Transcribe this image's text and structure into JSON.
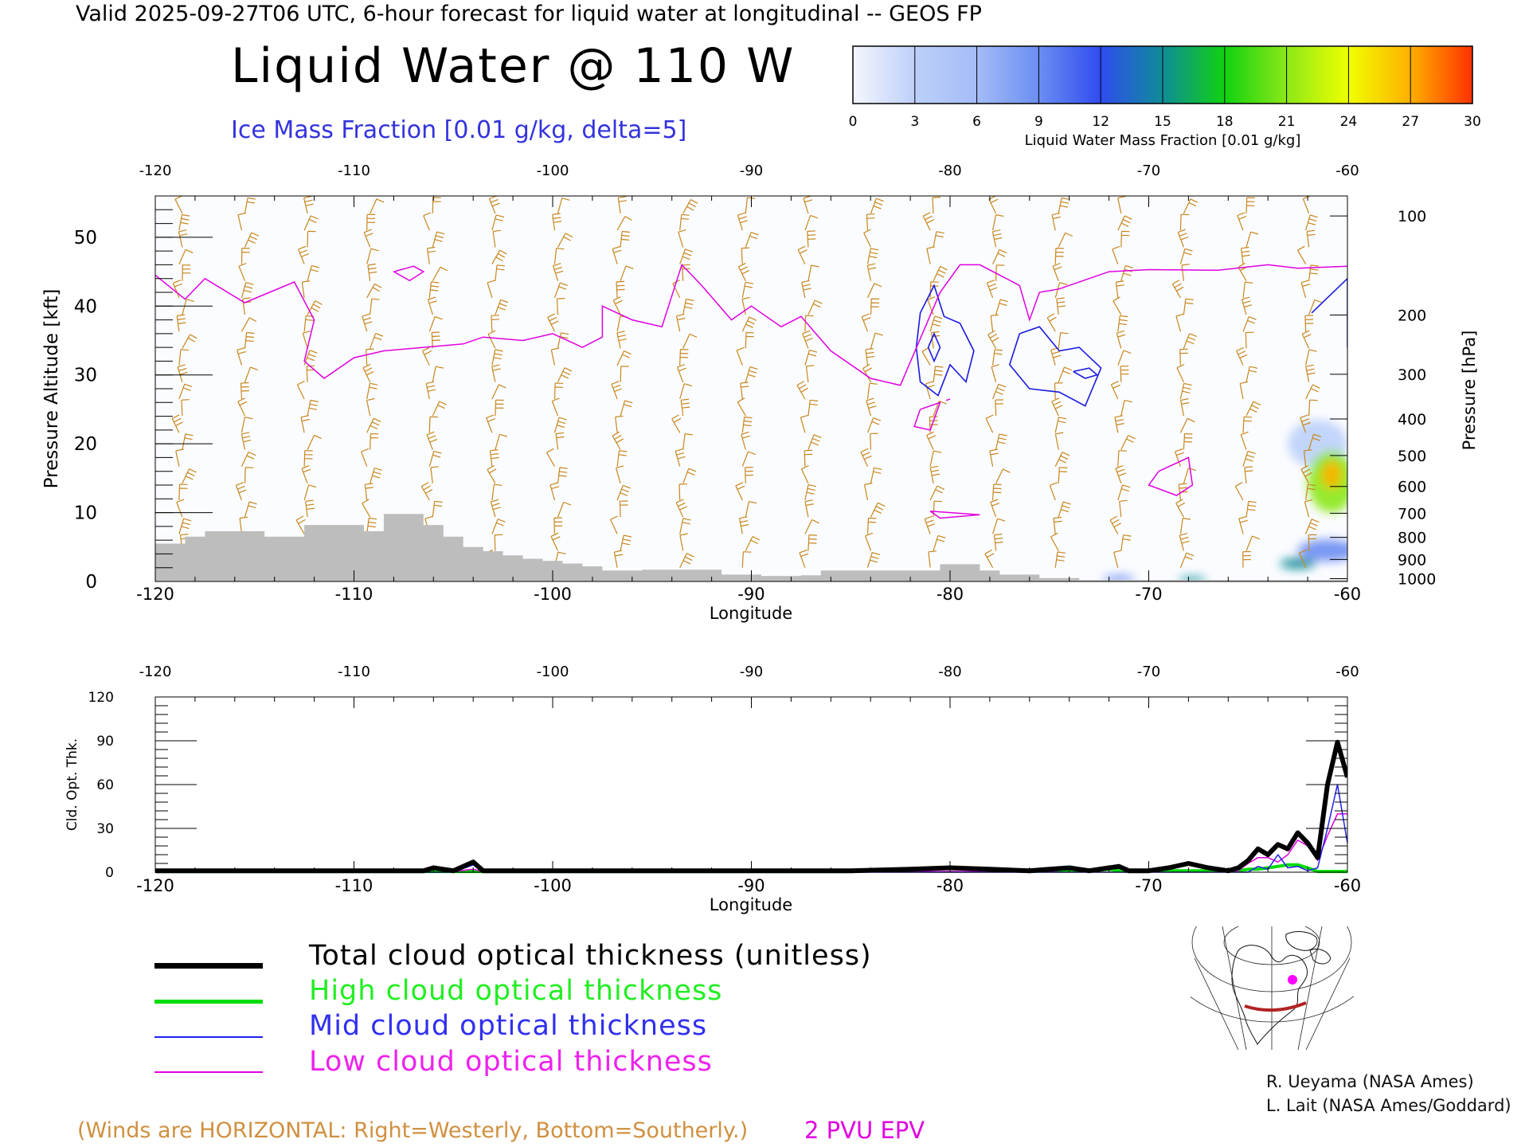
{
  "header": {
    "line": "Valid 2025-09-27T06 UTC, 6-hour forecast for liquid water at longitudinal -- GEOS FP",
    "title": "Liquid Water @ 110 W",
    "subtitle": "Ice Mass Fraction [0.01 g/kg, delta=5]"
  },
  "colorbar": {
    "label": "Liquid Water Mass Fraction [0.01 g/kg]",
    "ticks": [
      "0",
      "3",
      "6",
      "9",
      "12",
      "15",
      "18",
      "21",
      "24",
      "27",
      "30"
    ],
    "colors": [
      "#f4f6fd",
      "#bdd0f9",
      "#a4bcf7",
      "#6b8ef2",
      "#2f4cef",
      "#0f8c98",
      "#10d210",
      "#8ce818",
      "#f0ff00",
      "#ffb000",
      "#ff3000"
    ]
  },
  "colors": {
    "ice_contour": "#1a1ae0",
    "epv_contour": "#e000e0",
    "wind_barbs": "#c8861c",
    "terrain": "#bdbdbd",
    "total": "#000000",
    "high": "#00dd00",
    "mid": "#2020ee",
    "low": "#e000e0"
  },
  "chart_data": [
    {
      "type": "heatmap",
      "title": "Liquid Water @ 110 W",
      "xlabel": "Longitude",
      "ylabel": "Pressure Altitude [kft]",
      "y2label": "Pressure [hPa]",
      "xlim": [
        -120,
        -60
      ],
      "ylim": [
        0,
        56
      ],
      "x_ticks": [
        "-120",
        "-110",
        "-100",
        "-90",
        "-80",
        "-70",
        "-60"
      ],
      "y_ticks": [
        "0",
        "10",
        "20",
        "30",
        "40",
        "50"
      ],
      "pressure_ticks": [
        {
          "label": "100",
          "kft": 53.1
        },
        {
          "label": "200",
          "kft": 38.7
        },
        {
          "label": "300",
          "kft": 30.1
        },
        {
          "label": "400",
          "kft": 23.6
        },
        {
          "label": "500",
          "kft": 18.3
        },
        {
          "label": "600",
          "kft": 13.8
        },
        {
          "label": "700",
          "kft": 9.9
        },
        {
          "label": "800",
          "kft": 6.4
        },
        {
          "label": "900",
          "kft": 3.2
        },
        {
          "label": "1000",
          "kft": 0.4
        }
      ],
      "terrain": {
        "lon": [
          -120,
          -118.5,
          -118.5,
          -117.5,
          -117.5,
          -116.5,
          -116.5,
          -114.5,
          -114.5,
          -112.5,
          -112.5,
          -111.5,
          -111.5,
          -110.5,
          -110.5,
          -109.5,
          -109.5,
          -108.5,
          -108.5,
          -107.5,
          -107.5,
          -106.5,
          -106.5,
          -105.5,
          -105.5,
          -104.5,
          -104.5,
          -103.5,
          -103.5,
          -102.5,
          -102.5,
          -101.5,
          -101.5,
          -100.5,
          -100.5,
          -99.5,
          -99.5,
          -98.5,
          -98.5,
          -97.5,
          -97.5,
          -96.5,
          -96.5,
          -95.5,
          -95.5,
          -91.5,
          -91.5,
          -89.5,
          -89.5,
          -87.5,
          -87.5,
          -86.5,
          -86.5,
          -80.5,
          -80.5,
          -78.5,
          -78.5,
          -77.5,
          -77.5,
          -75.5,
          -75.5,
          -73.5,
          -73.5,
          -60
        ],
        "kft": [
          5.5,
          5.5,
          6.5,
          6.5,
          7.3,
          7.3,
          7.3,
          7.3,
          6.5,
          6.5,
          8.2,
          8.2,
          8.2,
          8.2,
          8.2,
          8.2,
          7.3,
          7.3,
          9.8,
          9.8,
          9.8,
          9.8,
          8.2,
          8.2,
          6.5,
          6.5,
          5.0,
          5.0,
          4.4,
          4.4,
          3.8,
          3.8,
          3.3,
          3.3,
          3.0,
          3.0,
          2.6,
          2.6,
          2.2,
          2.2,
          1.6,
          1.6,
          1.6,
          1.6,
          1.7,
          1.7,
          1.0,
          1.0,
          0.8,
          0.8,
          0.9,
          0.9,
          1.6,
          1.6,
          2.5,
          2.5,
          1.6,
          1.6,
          1.0,
          1.0,
          0.5,
          0.5,
          0.2,
          0.2
        ]
      },
      "epv_2pvu": {
        "lon": [
          -120,
          -118.5,
          -117.5,
          -115.5,
          -113,
          -112,
          -112.5,
          -111.5,
          -110,
          -108.5,
          -106.5,
          -104.5,
          -103.5,
          -101.5,
          -100,
          -98.5,
          -97.5,
          -97.5,
          -96,
          -94.5,
          -93.5,
          -92.5,
          -91,
          -90,
          -88.5,
          -87.5,
          -86,
          -84,
          -82.5,
          -80.5,
          -79.5,
          -78.5,
          -77.5,
          -76.5,
          -76,
          -75.5,
          -74.5,
          -73,
          -72,
          -70,
          -66.5,
          -64,
          -62.5,
          -60
        ],
        "kft": [
          44.5,
          41,
          44,
          40.5,
          43.5,
          38,
          32,
          29.5,
          32.5,
          33.5,
          34,
          34.5,
          35.5,
          35,
          36,
          34,
          35.5,
          40,
          38,
          37,
          46,
          43,
          38,
          40,
          37,
          38.5,
          33.5,
          29.5,
          28.5,
          42,
          46,
          46,
          44.5,
          43,
          38,
          42,
          42.5,
          44,
          45,
          45.3,
          45.2,
          46,
          45.5,
          45.8
        ]
      },
      "ice_contours": [
        {
          "lon": [
            -81.5,
            -80.8,
            -80.3,
            -79.5,
            -78.8,
            -79.2,
            -80,
            -80.6,
            -81.5,
            -81.7,
            -81.5
          ],
          "kft": [
            39,
            43,
            38.5,
            37.5,
            33.5,
            29,
            31.5,
            27,
            29,
            34,
            39
          ]
        },
        {
          "lon": [
            -81.1,
            -80.8,
            -80.5,
            -80.8,
            -81.1
          ],
          "kft": [
            34,
            36,
            34,
            32,
            34
          ]
        },
        {
          "lon": [
            -76.5,
            -75.5,
            -74.5,
            -73.5,
            -72.4,
            -73.2,
            -74.5,
            -76,
            -77,
            -76.5
          ],
          "kft": [
            36,
            37,
            33.5,
            34,
            31,
            25.5,
            27.5,
            28,
            31.5,
            36
          ]
        },
        {
          "lon": [
            -73.8,
            -73,
            -72.6,
            -73.2,
            -73.8
          ],
          "kft": [
            30.5,
            31,
            30,
            29.5,
            30.5
          ]
        },
        {
          "lon": [
            -61.8,
            -60,
            -60
          ],
          "kft": [
            39,
            44,
            34
          ]
        }
      ],
      "epv_closed": [
        {
          "lon": [
            -108,
            -107,
            -106.5,
            -107.2,
            -108
          ],
          "kft": [
            45,
            45.8,
            45,
            43.7,
            45
          ]
        },
        {
          "lon": [
            -81.5,
            -80.5,
            -81,
            -81.8,
            -81.5
          ],
          "kft": [
            25,
            26,
            22,
            22.5,
            25
          ]
        },
        {
          "lon": [
            -80.2,
            -80.0,
            -80.2
          ],
          "kft": [
            26.3,
            26.5,
            26.3
          ]
        },
        {
          "lon": [
            -81,
            -78.5,
            -80.5,
            -81
          ],
          "kft": [
            10.2,
            9.7,
            9.2,
            10.2
          ]
        },
        {
          "lon": [
            -69.5,
            -68,
            -67.8,
            -68.6,
            -70,
            -69.5
          ],
          "kft": [
            16,
            18,
            14,
            12.5,
            14,
            16
          ]
        }
      ],
      "liquid_blobs": [
        {
          "lon": -60.8,
          "kft": 14.5,
          "rlon": 1.2,
          "rkft": 4.5,
          "value": 21
        },
        {
          "lon": -60.8,
          "kft": 15.5,
          "rlon": 0.5,
          "rkft": 2.0,
          "value": 27
        },
        {
          "lon": -62.5,
          "kft": 2.6,
          "rlon": 0.9,
          "rkft": 0.8,
          "value": 16
        },
        {
          "lon": -61.0,
          "kft": 4.5,
          "rlon": 1.5,
          "rkft": 1.6,
          "value": 8
        },
        {
          "lon": -71.5,
          "kft": 0.4,
          "rlon": 0.8,
          "rkft": 0.5,
          "value": 10
        },
        {
          "lon": -67.8,
          "kft": 0.3,
          "rlon": 0.7,
          "rkft": 0.4,
          "value": 15
        },
        {
          "lon": -61.5,
          "kft": 20,
          "rlon": 1.5,
          "rkft": 3.5,
          "value": 3
        }
      ]
    },
    {
      "type": "line",
      "xlabel": "Longitude",
      "ylabel": "Cld. Opt. Thk.",
      "xlim": [
        -120,
        -60
      ],
      "ylim": [
        0,
        120
      ],
      "x_ticks": [
        "-120",
        "-110",
        "-100",
        "-90",
        "-80",
        "-70",
        "-60"
      ],
      "y_ticks": [
        "0",
        "30",
        "60",
        "90",
        "120"
      ],
      "x": [
        -120,
        -106.5,
        -106,
        -105,
        -104,
        -103.5,
        -102,
        -85,
        -82,
        -80,
        -78,
        -76,
        -75,
        -74,
        -73,
        -72,
        -71.5,
        -71,
        -70,
        -69,
        -68,
        -67,
        -66,
        -65.5,
        -65,
        -64.5,
        -64,
        -63.5,
        -63,
        -62.5,
        -62,
        -61.5,
        -61,
        -60.5,
        -60
      ],
      "series": [
        {
          "name": "Total cloud optical thickness (unitless)",
          "key": "total",
          "width": 6,
          "values": [
            1,
            1,
            3,
            1,
            7,
            1,
            1,
            1,
            2,
            3,
            2,
            1,
            2,
            3,
            1,
            3,
            4,
            1,
            1,
            3,
            6,
            3,
            1,
            3,
            8,
            16,
            12,
            19,
            16,
            27,
            20,
            10,
            60,
            89,
            65
          ]
        },
        {
          "name": "High cloud optical thickness",
          "key": "high",
          "width": 4,
          "values": [
            0.5,
            0.5,
            0.5,
            0.5,
            0.5,
            0.5,
            0.5,
            0.5,
            2,
            3,
            2,
            0.5,
            1,
            1.5,
            1,
            2,
            1,
            0.5,
            1,
            1,
            1,
            1,
            1,
            1,
            2,
            2,
            3,
            4,
            5,
            5,
            3,
            0.5,
            0.5,
            0.5,
            0.5
          ]
        },
        {
          "name": "Mid cloud optical thickness",
          "key": "mid",
          "width": 1.5,
          "values": [
            0,
            0,
            0,
            0,
            5,
            0,
            0,
            0,
            0,
            0,
            0,
            0,
            0,
            0,
            0,
            0,
            0,
            0,
            0,
            0,
            0,
            0,
            0,
            0,
            0,
            4,
            2,
            12,
            3,
            4,
            1,
            3,
            30,
            60,
            20
          ]
        },
        {
          "name": "Low cloud optical thickness",
          "key": "low",
          "width": 1.5,
          "values": [
            0.5,
            0.5,
            3,
            0.5,
            2,
            0.5,
            0.5,
            0.5,
            0.5,
            0.5,
            0.5,
            0.5,
            0.5,
            2,
            0.5,
            2,
            3,
            0.5,
            0.5,
            2,
            5,
            2,
            0.5,
            1,
            6,
            10,
            10,
            7,
            12,
            22,
            18,
            8,
            25,
            40,
            40
          ]
        }
      ]
    }
  ],
  "legend": {
    "total": "Total cloud optical thickness (unitless)",
    "high": "High cloud optical thickness",
    "mid": "Mid cloud optical thickness",
    "low": "Low cloud optical thickness"
  },
  "credits": {
    "line1": "R. Ueyama (NASA Ames)",
    "line2": "L. Lait (NASA Ames/Goddard)"
  },
  "notes": {
    "winds": "(Winds are HORIZONTAL: Right=Westerly, Bottom=Southerly.)",
    "epv": "2 PVU EPV"
  }
}
